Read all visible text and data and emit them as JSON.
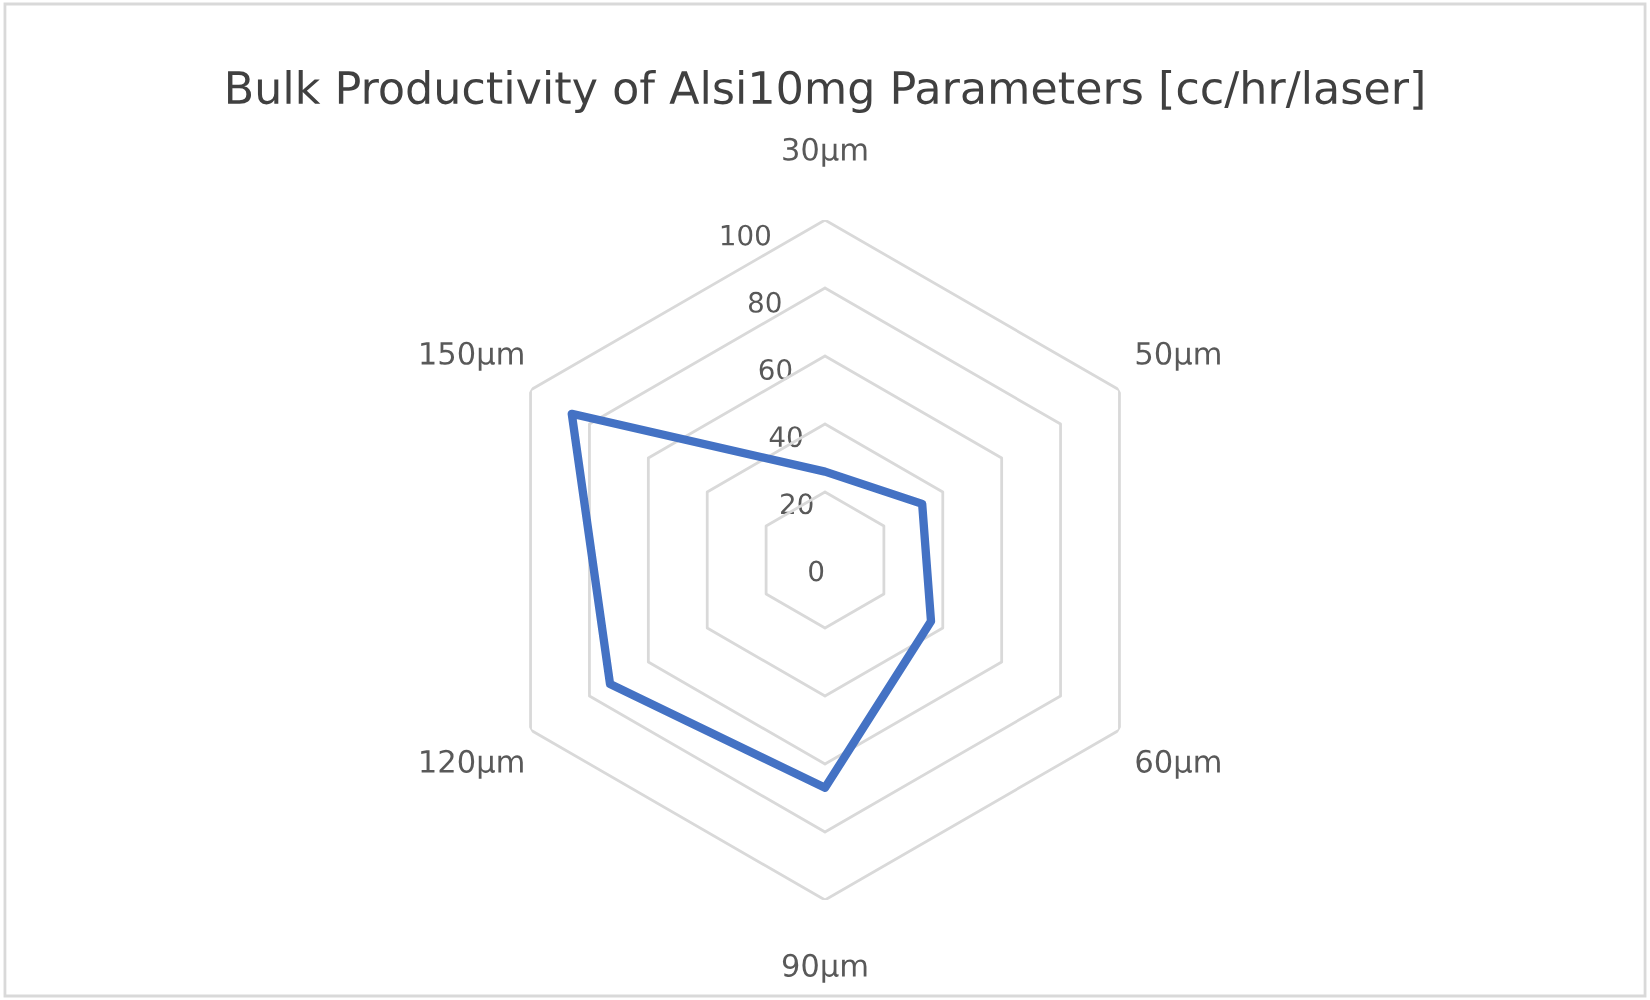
{
  "chart_data": {
    "type": "radar",
    "title": "Bulk Productivity of Alsi10mg Parameters [cc/hr/laser]",
    "categories": [
      "30µm",
      "50µm",
      "60µm",
      "90µm",
      "120µm",
      "150µm"
    ],
    "series": [
      {
        "color": "#4472c4",
        "values": [
          26,
          33,
          36,
          67,
          73,
          86
        ]
      }
    ],
    "ylim": [
      0,
      100
    ],
    "yticks": [
      0,
      20,
      40,
      60,
      80,
      100
    ],
    "grid": true,
    "marker": "none",
    "line_style": "solid"
  }
}
